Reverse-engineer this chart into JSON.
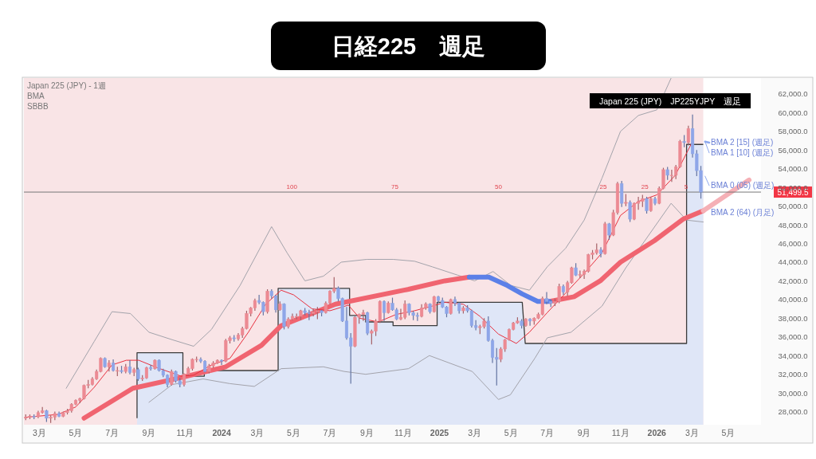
{
  "chart_data": {
    "type": "candlestick",
    "title": "日経225　週足",
    "subtitle": "Japan 225 (JPY)　JP225YJPY　週足",
    "x": [
      "2023-02-06",
      "2023-02-13",
      "2023-02-20",
      "2023-02-27",
      "2023-03-06",
      "2023-03-13",
      "2023-03-20",
      "2023-03-27",
      "2023-04-03",
      "2023-04-10",
      "2023-04-17",
      "2023-04-24",
      "2023-05-01",
      "2023-05-08",
      "2023-05-15",
      "2023-05-22",
      "2023-05-29",
      "2023-06-05",
      "2023-06-12",
      "2023-06-19",
      "2023-06-26",
      "2023-07-03",
      "2023-07-10",
      "2023-07-17",
      "2023-07-24",
      "2023-07-31",
      "2023-08-07",
      "2023-08-14",
      "2023-08-21",
      "2023-08-28",
      "2023-09-04",
      "2023-09-11",
      "2023-09-18",
      "2023-09-25",
      "2023-10-02",
      "2023-10-09",
      "2023-10-16",
      "2023-10-23",
      "2023-10-30",
      "2023-11-06",
      "2023-11-13",
      "2023-11-20",
      "2023-11-27",
      "2023-12-04",
      "2023-12-11",
      "2023-12-18",
      "2023-12-25",
      "2024-01-01",
      "2024-01-08",
      "2024-01-15",
      "2024-01-22",
      "2024-01-29",
      "2024-02-05",
      "2024-02-12",
      "2024-02-19",
      "2024-02-26",
      "2024-03-04",
      "2024-03-11",
      "2024-03-18",
      "2024-03-25",
      "2024-04-01",
      "2024-04-08",
      "2024-04-15",
      "2024-04-22",
      "2024-04-29",
      "2024-05-06",
      "2024-05-13",
      "2024-05-20",
      "2024-05-27",
      "2024-06-03",
      "2024-06-10",
      "2024-06-17",
      "2024-06-24",
      "2024-07-01",
      "2024-07-08",
      "2024-07-15",
      "2024-07-22",
      "2024-07-29",
      "2024-08-05",
      "2024-08-12",
      "2024-08-19",
      "2024-08-26",
      "2024-09-02",
      "2024-09-09",
      "2024-09-16",
      "2024-09-23",
      "2024-09-30",
      "2024-10-07",
      "2024-10-14",
      "2024-10-21",
      "2024-10-28",
      "2024-11-04",
      "2024-11-11",
      "2024-11-18",
      "2024-11-25",
      "2024-12-02",
      "2024-12-09",
      "2024-12-16",
      "2024-12-23",
      "2024-12-30",
      "2025-01-06",
      "2025-01-13",
      "2025-01-20",
      "2025-01-27",
      "2025-02-03",
      "2025-02-10",
      "2025-02-17",
      "2025-02-24",
      "2025-03-03",
      "2025-03-10",
      "2025-03-17",
      "2025-03-24",
      "2025-03-31",
      "2025-04-07",
      "2025-04-14",
      "2025-04-21",
      "2025-04-28",
      "2025-05-05",
      "2025-05-12",
      "2025-05-19",
      "2025-05-26",
      "2025-06-02",
      "2025-06-09",
      "2025-06-16",
      "2025-06-23",
      "2025-06-30",
      "2025-07-07",
      "2025-07-14",
      "2025-07-21",
      "2025-07-28",
      "2025-08-04",
      "2025-08-11",
      "2025-08-18",
      "2025-08-25",
      "2025-09-01",
      "2025-09-08",
      "2025-09-15",
      "2025-09-22",
      "2025-09-29",
      "2025-10-06",
      "2025-10-13",
      "2025-10-20",
      "2025-10-27",
      "2025-11-03",
      "2025-11-10",
      "2025-11-17",
      "2025-11-24",
      "2025-12-01",
      "2025-12-08",
      "2025-12-15",
      "2025-12-22",
      "2025-12-29",
      "2026-01-05",
      "2026-01-12",
      "2026-01-19",
      "2026-01-26",
      "2026-02-02",
      "2026-02-09",
      "2026-02-16",
      "2026-02-23",
      "2026-03-02",
      "2026-03-09",
      "2026-03-16"
    ],
    "ohlc": [
      [
        27300,
        27700,
        27100,
        27400
      ],
      [
        27400,
        27700,
        27200,
        27500
      ],
      [
        27500,
        27700,
        27200,
        27450
      ],
      [
        27450,
        28100,
        27300,
        27900
      ],
      [
        27900,
        28500,
        27800,
        28100
      ],
      [
        28100,
        28200,
        26900,
        27300
      ],
      [
        27300,
        27600,
        26800,
        27400
      ],
      [
        27400,
        28000,
        27100,
        27800
      ],
      [
        27800,
        28000,
        27400,
        27500
      ],
      [
        27500,
        28000,
        27400,
        27900
      ],
      [
        27900,
        28300,
        27700,
        28100
      ],
      [
        28100,
        28900,
        27900,
        28800
      ],
      [
        28800,
        29300,
        28700,
        29200
      ],
      [
        29200,
        29500,
        28900,
        29400
      ],
      [
        29400,
        30900,
        29300,
        30800
      ],
      [
        30800,
        31400,
        30500,
        30900
      ],
      [
        30900,
        31700,
        30800,
        31500
      ],
      [
        31500,
        32500,
        31400,
        32300
      ],
      [
        32300,
        33800,
        32200,
        33700
      ],
      [
        33700,
        33800,
        32700,
        32800
      ],
      [
        32800,
        33500,
        32300,
        33200
      ],
      [
        33200,
        33600,
        32300,
        32400
      ],
      [
        32400,
        32800,
        31800,
        32400
      ],
      [
        32400,
        32900,
        32100,
        32300
      ],
      [
        32300,
        33100,
        32100,
        32800
      ],
      [
        32800,
        33500,
        32000,
        32200
      ],
      [
        32200,
        32700,
        31800,
        32500
      ],
      [
        32500,
        32700,
        31300,
        31500
      ],
      [
        31500,
        31900,
        31300,
        31600
      ],
      [
        31600,
        32800,
        31500,
        32700
      ],
      [
        32700,
        33000,
        32400,
        32600
      ],
      [
        32600,
        33600,
        32500,
        33500
      ],
      [
        33500,
        33600,
        32300,
        32400
      ],
      [
        32400,
        32600,
        31700,
        31900
      ],
      [
        31900,
        32000,
        30600,
        30900
      ],
      [
        30900,
        32500,
        30800,
        32300
      ],
      [
        32300,
        32400,
        31100,
        31300
      ],
      [
        31300,
        31600,
        30600,
        30900
      ],
      [
        30900,
        32100,
        30700,
        32000
      ],
      [
        32000,
        32800,
        31900,
        32600
      ],
      [
        32600,
        33700,
        32400,
        33600
      ],
      [
        33600,
        33900,
        33300,
        33600
      ],
      [
        33600,
        33800,
        33200,
        33400
      ],
      [
        33400,
        33500,
        32200,
        32300
      ],
      [
        32300,
        33100,
        32100,
        32900
      ],
      [
        32900,
        33400,
        32700,
        33200
      ],
      [
        33200,
        33600,
        33100,
        33500
      ],
      [
        33500,
        33600,
        33000,
        33400
      ],
      [
        33400,
        35800,
        33300,
        35600
      ],
      [
        35600,
        36100,
        35300,
        35900
      ],
      [
        35900,
        36200,
        35500,
        35800
      ],
      [
        35800,
        36400,
        35600,
        36200
      ],
      [
        36200,
        37100,
        35900,
        36900
      ],
      [
        36900,
        38800,
        36800,
        38500
      ],
      [
        38500,
        39200,
        38200,
        39100
      ],
      [
        39100,
        40100,
        38800,
        39900
      ],
      [
        39900,
        40500,
        39500,
        39700
      ],
      [
        39700,
        39800,
        38300,
        38700
      ],
      [
        38700,
        41100,
        38500,
        40900
      ],
      [
        40900,
        41100,
        40100,
        40400
      ],
      [
        40400,
        40500,
        38600,
        38900
      ],
      [
        38900,
        39800,
        38800,
        39500
      ],
      [
        39500,
        39600,
        36800,
        37100
      ],
      [
        37100,
        38100,
        36900,
        37900
      ],
      [
        37900,
        38500,
        37800,
        38200
      ],
      [
        38200,
        38500,
        37900,
        38200
      ],
      [
        38200,
        38900,
        37800,
        38800
      ],
      [
        38800,
        39100,
        38300,
        38600
      ],
      [
        38600,
        38900,
        37800,
        38500
      ],
      [
        38500,
        39000,
        38200,
        38700
      ],
      [
        38700,
        39200,
        37900,
        38800
      ],
      [
        38800,
        38900,
        38200,
        38600
      ],
      [
        38600,
        39800,
        38500,
        39600
      ],
      [
        39600,
        41000,
        39500,
        40900
      ],
      [
        40900,
        42400,
        40700,
        41200
      ],
      [
        41200,
        41400,
        39800,
        40100
      ],
      [
        40100,
        40200,
        37600,
        37700
      ],
      [
        37700,
        39200,
        35700,
        35900
      ],
      [
        35900,
        36400,
        31000,
        35000
      ],
      [
        35000,
        38200,
        34900,
        38100
      ],
      [
        38100,
        38500,
        37400,
        38400
      ],
      [
        38400,
        38900,
        37700,
        38600
      ],
      [
        38600,
        38700,
        36200,
        36400
      ],
      [
        36400,
        36800,
        35200,
        36600
      ],
      [
        36600,
        37900,
        36100,
        37700
      ],
      [
        37700,
        39900,
        37500,
        39800
      ],
      [
        39800,
        39900,
        37700,
        38600
      ],
      [
        38600,
        39800,
        38500,
        39600
      ],
      [
        39600,
        40200,
        38800,
        38900
      ],
      [
        38900,
        39100,
        37800,
        37900
      ],
      [
        37900,
        39000,
        37800,
        38100
      ],
      [
        38100,
        39900,
        37900,
        39500
      ],
      [
        39500,
        39600,
        38300,
        38600
      ],
      [
        38600,
        38800,
        37800,
        38300
      ],
      [
        38300,
        38600,
        37700,
        38200
      ],
      [
        38200,
        39500,
        38100,
        39100
      ],
      [
        39100,
        39700,
        38900,
        39500
      ],
      [
        39500,
        39600,
        38500,
        38700
      ],
      [
        38700,
        40400,
        38600,
        40300
      ],
      [
        40300,
        40400,
        39600,
        39900
      ],
      [
        39900,
        40200,
        39100,
        39200
      ],
      [
        39200,
        39300,
        38100,
        38500
      ],
      [
        38500,
        40100,
        38400,
        40000
      ],
      [
        40000,
        40300,
        39300,
        39600
      ],
      [
        39600,
        39700,
        38500,
        38800
      ],
      [
        38800,
        39300,
        38500,
        39100
      ],
      [
        39100,
        39400,
        38600,
        38800
      ],
      [
        38800,
        38900,
        37000,
        37200
      ],
      [
        37200,
        37800,
        36700,
        37000
      ],
      [
        37000,
        37300,
        36300,
        37100
      ],
      [
        37100,
        38000,
        36900,
        37700
      ],
      [
        37700,
        38200,
        35500,
        35600
      ],
      [
        35600,
        35800,
        33200,
        33800
      ],
      [
        33800,
        34800,
        30800,
        33600
      ],
      [
        33600,
        34900,
        33300,
        34700
      ],
      [
        34700,
        35800,
        34400,
        35700
      ],
      [
        35700,
        36900,
        35600,
        36800
      ],
      [
        36800,
        37600,
        36700,
        37500
      ],
      [
        37500,
        38100,
        37400,
        37700
      ],
      [
        37700,
        37900,
        36900,
        37200
      ],
      [
        37200,
        38000,
        37100,
        37900
      ],
      [
        37900,
        38000,
        37200,
        37700
      ],
      [
        37700,
        38100,
        37300,
        38000
      ],
      [
        38000,
        38600,
        37900,
        38400
      ],
      [
        38400,
        40300,
        38300,
        40100
      ],
      [
        40100,
        40800,
        39500,
        39800
      ],
      [
        39800,
        40000,
        39200,
        39600
      ],
      [
        39600,
        40100,
        39300,
        39800
      ],
      [
        39800,
        41700,
        39600,
        41400
      ],
      [
        41400,
        41600,
        40500,
        40800
      ],
      [
        40800,
        42000,
        40400,
        41800
      ],
      [
        41800,
        43500,
        41700,
        43400
      ],
      [
        43400,
        43900,
        42500,
        42600
      ],
      [
        42600,
        43100,
        42300,
        42700
      ],
      [
        42700,
        43200,
        42200,
        43000
      ],
      [
        43000,
        44900,
        42900,
        44800
      ],
      [
        44800,
        45300,
        44300,
        45000
      ],
      [
        45000,
        46000,
        44800,
        45300
      ],
      [
        45300,
        45600,
        44500,
        44900
      ],
      [
        44900,
        48300,
        44800,
        48100
      ],
      [
        48100,
        48200,
        46400,
        46900
      ],
      [
        46900,
        49600,
        46800,
        49300
      ],
      [
        49300,
        52600,
        49100,
        52400
      ],
      [
        52400,
        52700,
        49900,
        50300
      ],
      [
        50300,
        51300,
        50000,
        50400
      ],
      [
        50400,
        50600,
        48300,
        48600
      ],
      [
        48600,
        50400,
        48500,
        50300
      ],
      [
        50300,
        51000,
        49600,
        50500
      ],
      [
        50500,
        51200,
        49900,
        50800
      ],
      [
        50800,
        51000,
        49200,
        49500
      ],
      [
        49500,
        51000,
        49400,
        50800
      ],
      [
        50800,
        51000,
        50100,
        50300
      ],
      [
        50300,
        52100,
        50200,
        51900
      ],
      [
        51900,
        54100,
        51800,
        53900
      ],
      [
        53900,
        54200,
        52800,
        53300
      ],
      [
        53300,
        53900,
        52600,
        53300
      ],
      [
        53300,
        54400,
        52900,
        54200
      ],
      [
        54200,
        57100,
        54100,
        56900
      ],
      [
        56900,
        57600,
        56300,
        56800
      ],
      [
        56800,
        58600,
        56500,
        58300
      ],
      [
        58300,
        59800,
        55200,
        55600
      ],
      [
        55600,
        56000,
        53200,
        53800
      ],
      [
        53800,
        54300,
        50800,
        51499.5
      ]
    ],
    "colors": [
      "#ec8a93",
      "#ec8a93",
      "#8ea6e8",
      "#ec8a93",
      "#ec8a93",
      "#8ea6e8",
      "#ec8a93",
      "#ec8a93",
      "#8ea6e8",
      "#ec8a93",
      "#ec8a93",
      "#ec8a93",
      "#ec8a93",
      "#ec8a93",
      "#ec8a93",
      "#ec8a93",
      "#ec8a93",
      "#ec8a93",
      "#ec8a93",
      "#8ea6e8",
      "#ec8a93",
      "#8ea6e8",
      "#ec8a93",
      "#8ea6e8",
      "#ec8a93",
      "#8ea6e8",
      "#ec8a93",
      "#8ea6e8",
      "#ec8a93",
      "#ec8a93",
      "#8ea6e8",
      "#ec8a93",
      "#8ea6e8",
      "#8ea6e8",
      "#8ea6e8",
      "#ec8a93",
      "#8ea6e8",
      "#8ea6e8",
      "#ec8a93",
      "#ec8a93",
      "#ec8a93",
      "#ec8a93",
      "#8ea6e8",
      "#8ea6e8",
      "#ec8a93",
      "#ec8a93",
      "#ec8a93",
      "#8ea6e8",
      "#ec8a93",
      "#ec8a93",
      "#8ea6e8",
      "#ec8a93",
      "#ec8a93",
      "#ec8a93",
      "#ec8a93",
      "#ec8a93",
      "#8ea6e8",
      "#8ea6e8",
      "#ec8a93",
      "#8ea6e8",
      "#8ea6e8",
      "#ec8a93",
      "#8ea6e8",
      "#ec8a93",
      "#ec8a93",
      "#ec8a93",
      "#ec8a93",
      "#8ea6e8",
      "#8ea6e8",
      "#ec8a93",
      "#ec8a93",
      "#8ea6e8",
      "#ec8a93",
      "#ec8a93",
      "#ec8a93",
      "#8ea6e8",
      "#8ea6e8",
      "#8ea6e8",
      "#8ea6e8",
      "#ec8a93",
      "#ec8a93",
      "#ec8a93",
      "#8ea6e8",
      "#ec8a93",
      "#ec8a93",
      "#ec8a93",
      "#8ea6e8",
      "#ec8a93",
      "#8ea6e8",
      "#8ea6e8",
      "#ec8a93",
      "#ec8a93",
      "#8ea6e8",
      "#8ea6e8",
      "#8ea6e8",
      "#ec8a93",
      "#ec8a93",
      "#8ea6e8",
      "#ec8a93",
      "#8ea6e8",
      "#8ea6e8",
      "#8ea6e8",
      "#ec8a93",
      "#8ea6e8",
      "#8ea6e8",
      "#ec8a93",
      "#8ea6e8",
      "#8ea6e8",
      "#8ea6e8",
      "#ec8a93",
      "#ec8a93",
      "#8ea6e8",
      "#8ea6e8",
      "#8ea6e8",
      "#ec8a93",
      "#ec8a93",
      "#ec8a93",
      "#ec8a93",
      "#ec8a93",
      "#8ea6e8",
      "#ec8a93",
      "#8ea6e8",
      "#ec8a93",
      "#ec8a93",
      "#ec8a93",
      "#8ea6e8",
      "#8ea6e8",
      "#ec8a93",
      "#ec8a93",
      "#8ea6e8",
      "#ec8a93",
      "#ec8a93",
      "#8ea6e8",
      "#ec8a93",
      "#ec8a93",
      "#ec8a93",
      "#ec8a93",
      "#ec8a93",
      "#8ea6e8",
      "#ec8a93",
      "#8ea6e8",
      "#ec8a93",
      "#ec8a93",
      "#8ea6e8",
      "#ec8a93",
      "#8ea6e8",
      "#ec8a93",
      "#ec8a93",
      "#ec8a93",
      "#8ea6e8",
      "#ec8a93",
      "#8ea6e8",
      "#ec8a93",
      "#ec8a93",
      "#8ea6e8",
      "#ec8a93",
      "#ec8a93",
      "#ec8a93",
      "#8ea6e8",
      "#ec8a93",
      "#8ea6e8",
      "#8ea6e8",
      "#8ea6e8"
    ],
    "series": [
      {
        "type": "area",
        "color": "#dfe6f7",
        "x": [
          "2023-08-12",
          "2023-08-12",
          "2023-10-28",
          "2023-10-28",
          "2023-12-03",
          "2023-12-03",
          "2024-04-05",
          "2024-04-05",
          "2024-08-03",
          "2024-08-03",
          "2024-08-30",
          "2024-08-30",
          "2024-10-15",
          "2024-10-15",
          "2024-12-28",
          "2024-12-28",
          "2025-05-20",
          "2025-05-25",
          "2026-02-20",
          "2026-02-20",
          "2026-03-20"
        ],
        "values": [
          27300,
          34300,
          34300,
          31800,
          31800,
          32400,
          32400,
          41200,
          41200,
          38300,
          38300,
          37600,
          37600,
          37200,
          37200,
          39700,
          39700,
          35300,
          35300,
          56600,
          56600
        ]
      },
      {
        "type": "line",
        "color": "#a3a3ab",
        "x": [
          "2023-09-01",
          "2023-10-10",
          "2023-12-01",
          "2024-01-15",
          "2024-02-25",
          "2024-04-10",
          "2024-06-20",
          "2024-07-25",
          "2024-08-30",
          "2024-11-10",
          "2024-12-15",
          "2025-02-25",
          "2025-04-10",
          "2025-04-30",
          "2025-06-10",
          "2025-07-01",
          "2025-08-10",
          "2025-10-01",
          "2025-11-10",
          "2026-01-25",
          "2026-02-20",
          "2026-03-20"
        ],
        "values": [
          29000,
          30900,
          31500,
          31000,
          30700,
          32600,
          32800,
          32300,
          32000,
          32600,
          34000,
          32300,
          29300,
          29800,
          33700,
          35900,
          36500,
          39300,
          43400,
          50300,
          48500,
          48300
        ]
      },
      {
        "type": "line",
        "color": "#a3a3ab",
        "x": [
          "2023-04-15",
          "2023-06-01",
          "2023-07-01",
          "2023-08-01",
          "2023-09-01",
          "2023-10-10",
          "2023-11-15",
          "2023-12-15",
          "2024-02-01",
          "2024-03-25",
          "2024-04-20",
          "2024-05-20",
          "2024-06-20",
          "2024-07-20",
          "2024-09-01",
          "2024-10-15",
          "2024-11-20",
          "2024-12-20",
          "2025-02-01",
          "2025-03-01",
          "2025-04-01",
          "2025-05-01",
          "2025-06-01",
          "2025-07-01",
          "2025-08-01",
          "2025-09-01",
          "2025-10-01",
          "2025-11-01",
          "2025-12-01",
          "2026-01-01",
          "2026-01-25"
        ],
        "values": [
          30500,
          35500,
          38700,
          38500,
          36500,
          35700,
          35000,
          36800,
          41500,
          47800,
          45000,
          42000,
          42500,
          44000,
          44300,
          44300,
          44100,
          43500,
          42600,
          42000,
          43000,
          41500,
          41000,
          43500,
          45500,
          48500,
          53000,
          58000,
          59700,
          60300,
          63700
        ]
      },
      {
        "type": "line",
        "color": "#f06470",
        "x": [
          "2023-05-15",
          "2023-08-05",
          "2023-10-22",
          "2024-01-08",
          "2024-03-08",
          "2024-04-10",
          "2024-07-10",
          "2024-11-10",
          "2025-01-10",
          "2025-02-20",
          "2025-04-01",
          "2025-07-05",
          "2025-08-15",
          "2025-09-28",
          "2025-11-01",
          "2025-12-28",
          "2026-02-14",
          "2026-03-20"
        ],
        "values": [
          27300,
          30500,
          31600,
          32800,
          35100,
          37200,
          39500,
          41100,
          42000,
          42400,
          null,
          39800,
          40300,
          42000,
          44000,
          46300,
          48600,
          49500
        ]
      },
      {
        "type": "line",
        "color": "#5b80e8",
        "x": [
          "2025-02-20",
          "2025-03-25",
          "2025-04-25",
          "2025-05-20",
          "2025-06-15",
          "2025-07-05"
        ],
        "values": [
          42400,
          42400,
          41500,
          40600,
          39800,
          39800
        ]
      },
      {
        "type": "line",
        "color": "#f5b0b6",
        "x": [
          "2026-03-20",
          "2026-06-05"
        ],
        "values": [
          49500,
          52800
        ]
      },
      {
        "type": "line",
        "color": "#8fa9ee",
        "x": [
          "2026-03-23",
          "2026-03-30"
        ],
        "values": [
          56900,
          56800
        ]
      },
      {
        "type": "line",
        "color": "#8fa9ee",
        "x": [
          "2026-03-23",
          "2026-03-30"
        ],
        "values": [
          56900,
          55700
        ]
      },
      {
        "type": "line",
        "color": "#8fa9ee",
        "x": [
          "2026-03-23",
          "2026-03-30"
        ],
        "values": [
          53200,
          52200
        ]
      },
      {
        "type": "line",
        "color": "#e8313f",
        "x": [
          "2023-02-06",
          "2023-04-01",
          "2023-05-01",
          "2023-06-01",
          "2023-07-01",
          "2023-07-25",
          "2023-08-15",
          "2023-09-15",
          "2023-10-25",
          "2023-11-15",
          "2023-12-15",
          "2024-01-15",
          "2024-02-15",
          "2024-03-15",
          "2024-04-10",
          "2024-05-01",
          "2024-06-01",
          "2024-07-01",
          "2024-08-01",
          "2024-08-20",
          "2024-09-20",
          "2024-10-20",
          "2024-11-20",
          "2024-12-20",
          "2025-01-10",
          "2025-02-10",
          "2025-03-10",
          "2025-04-10",
          "2025-05-10",
          "2025-06-01",
          "2025-07-01",
          "2025-08-01",
          "2025-09-01",
          "2025-10-01",
          "2025-11-01",
          "2025-12-01",
          "2026-01-01",
          "2026-02-01",
          "2026-03-01"
        ],
        "values": [
          27400,
          27700,
          28500,
          30600,
          33000,
          33500,
          33500,
          32700,
          31800,
          31900,
          33000,
          33700,
          36500,
          39500,
          41000,
          40500,
          39000,
          38800,
          39400,
          38000,
          37600,
          38400,
          38800,
          39300,
          39700,
          39500,
          38200,
          36300,
          35300,
          36500,
          38600,
          40700,
          42800,
          45000,
          49000,
          50500,
          51200,
          53300,
          56800
        ]
      }
    ],
    "xlim": [
      "2023-02-03",
      "2026-06-25"
    ],
    "xticks": [
      {
        "value": "2023-03-01",
        "label": "3月"
      },
      {
        "value": "2023-05-01",
        "label": "5月"
      },
      {
        "value": "2023-07-01",
        "label": "7月"
      },
      {
        "value": "2023-09-01",
        "label": "9月"
      },
      {
        "value": "2023-11-01",
        "label": "11月"
      },
      {
        "value": "2024-01-01",
        "label": "2024"
      },
      {
        "value": "2024-03-01",
        "label": "3月"
      },
      {
        "value": "2024-05-01",
        "label": "5月"
      },
      {
        "value": "2024-07-01",
        "label": "7月"
      },
      {
        "value": "2024-09-01",
        "label": "9月"
      },
      {
        "value": "2024-11-01",
        "label": "11月"
      },
      {
        "value": "2025-01-01",
        "label": "2025"
      },
      {
        "value": "2025-03-01",
        "label": "3月"
      },
      {
        "value": "2025-05-01",
        "label": "5月"
      },
      {
        "value": "2025-07-01",
        "label": "7月"
      },
      {
        "value": "2025-09-01",
        "label": "9月"
      },
      {
        "value": "2025-11-01",
        "label": "11月"
      },
      {
        "value": "2026-01-01",
        "label": "2026"
      },
      {
        "value": "2026-03-01",
        "label": "3月"
      },
      {
        "value": "2026-05-01",
        "label": "5月"
      }
    ],
    "ylim": [
      26600,
      63700
    ],
    "yticks": [
      {
        "value": 28000,
        "label": "28,000.0"
      },
      {
        "value": 30000,
        "label": "30,000.0"
      },
      {
        "value": 32000,
        "label": "32,000.0"
      },
      {
        "value": 34000,
        "label": "34,000.0"
      },
      {
        "value": 36000,
        "label": "36,000.0"
      },
      {
        "value": 38000,
        "label": "38,000.0"
      },
      {
        "value": 40000,
        "label": "40,000.0"
      },
      {
        "value": 42000,
        "label": "42,000.0"
      },
      {
        "value": 44000,
        "label": "44,000.0"
      },
      {
        "value": 46000,
        "label": "46,000.0"
      },
      {
        "value": 48000,
        "label": "48,000.0"
      },
      {
        "value": 50000,
        "label": "50,000.0"
      },
      {
        "value": 52000,
        "label": "52,000.0"
      },
      {
        "value": 54000,
        "label": "54,000.0"
      },
      {
        "value": 56000,
        "label": "56,000.0"
      },
      {
        "value": 58000,
        "label": "58,000.0"
      },
      {
        "value": 60000,
        "label": "60,000.0"
      },
      {
        "value": 62000,
        "label": "62,000.0"
      }
    ],
    "ref_lines": [
      {
        "axis": "y",
        "value": 51499.5,
        "label": "51,499.5",
        "color": "#777777"
      }
    ],
    "bands": [
      {
        "axis": "x",
        "from": "2023-02-03",
        "to": "2026-03-20",
        "color": "#f9e4e6"
      }
    ],
    "annotations": [
      "Japan 225 (JPY) - 1週",
      "BMA",
      "SBBB",
      {
        "text": "100",
        "x": "2024-04-28",
        "y": 51499.5
      },
      {
        "text": "75",
        "x": "2024-10-18",
        "y": 51499.5
      },
      {
        "text": "50",
        "x": "2025-04-10",
        "y": 51499.5
      },
      {
        "text": "25",
        "x": "2025-10-03",
        "y": 51499.5
      },
      {
        "text": "25",
        "x": "2025-12-12",
        "y": 51499.5
      },
      {
        "text": "5",
        "x": "2026-02-19",
        "y": 51499.5
      },
      {
        "text": "BMA 2 [15] (週足)",
        "x": "2026-03-30",
        "y": 56800
      },
      {
        "text": "BMA 1 [10] (週足)",
        "x": "2026-03-30",
        "y": 55700
      },
      {
        "text": "BMA 0 (05) (週足)",
        "x": "2026-03-30",
        "y": 52200
      },
      {
        "text": "BMA 2 (64) (月足)",
        "x": "2026-03-30",
        "y": 49300
      }
    ],
    "grid": false
  }
}
